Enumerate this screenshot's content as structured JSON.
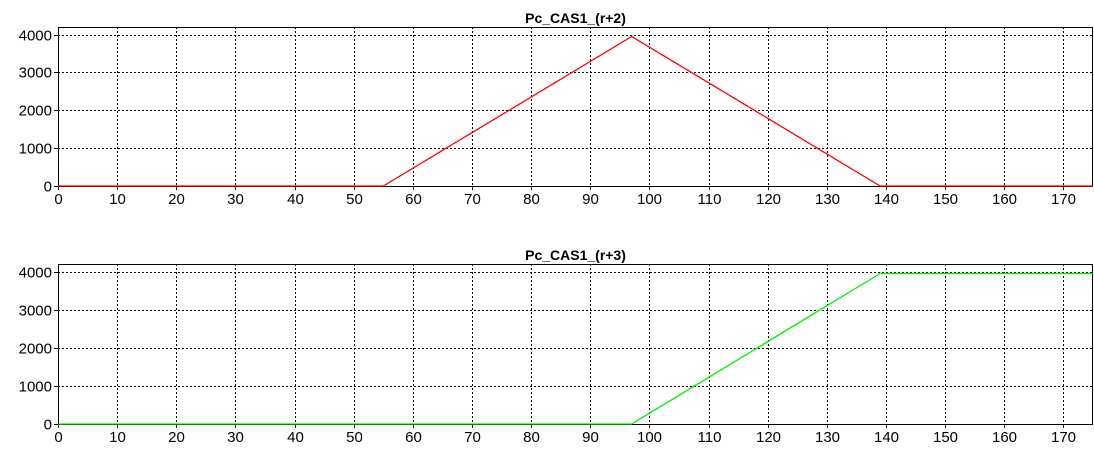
{
  "chart_data": [
    {
      "type": "line",
      "title": "Pc_CAS1_(r+2)",
      "xlabel": "",
      "ylabel": "",
      "xlim": [
        0,
        175
      ],
      "ylim": [
        0,
        4200
      ],
      "xticks": [
        0,
        10,
        20,
        30,
        40,
        50,
        60,
        70,
        80,
        90,
        100,
        110,
        120,
        130,
        140,
        150,
        160,
        170
      ],
      "xtick_labels": [
        "0",
        "10",
        "20",
        "30",
        "40",
        "50",
        "60",
        "70",
        "80",
        "90",
        "100",
        "110",
        "120",
        "130",
        "140",
        "150",
        "160",
        "170"
      ],
      "yticks": [
        0,
        1000,
        2000,
        3000,
        4000
      ],
      "ytick_labels": [
        "0",
        "1000",
        "2000",
        "3000",
        "4000"
      ],
      "grid": true,
      "series": [
        {
          "color": "#ff0000",
          "x": [
            0,
            55,
            97,
            139,
            175
          ],
          "y": [
            0,
            0,
            3950,
            0,
            0
          ]
        }
      ]
    },
    {
      "type": "line",
      "title": "Pc_CAS1_(r+3)",
      "xlabel": "",
      "ylabel": "",
      "xlim": [
        0,
        175
      ],
      "ylim": [
        0,
        4200
      ],
      "xticks": [
        0,
        10,
        20,
        30,
        40,
        50,
        60,
        70,
        80,
        90,
        100,
        110,
        120,
        130,
        140,
        150,
        160,
        170
      ],
      "xtick_labels": [
        "0",
        "10",
        "20",
        "30",
        "40",
        "50",
        "60",
        "70",
        "80",
        "90",
        "100",
        "110",
        "120",
        "130",
        "140",
        "150",
        "160",
        "170"
      ],
      "yticks": [
        0,
        1000,
        2000,
        3000,
        4000
      ],
      "ytick_labels": [
        "0",
        "1000",
        "2000",
        "3000",
        "4000"
      ],
      "grid": true,
      "series": [
        {
          "color": "#00ee00",
          "x": [
            0,
            97,
            139,
            175
          ],
          "y": [
            0,
            0,
            3950,
            3950
          ]
        }
      ]
    }
  ]
}
